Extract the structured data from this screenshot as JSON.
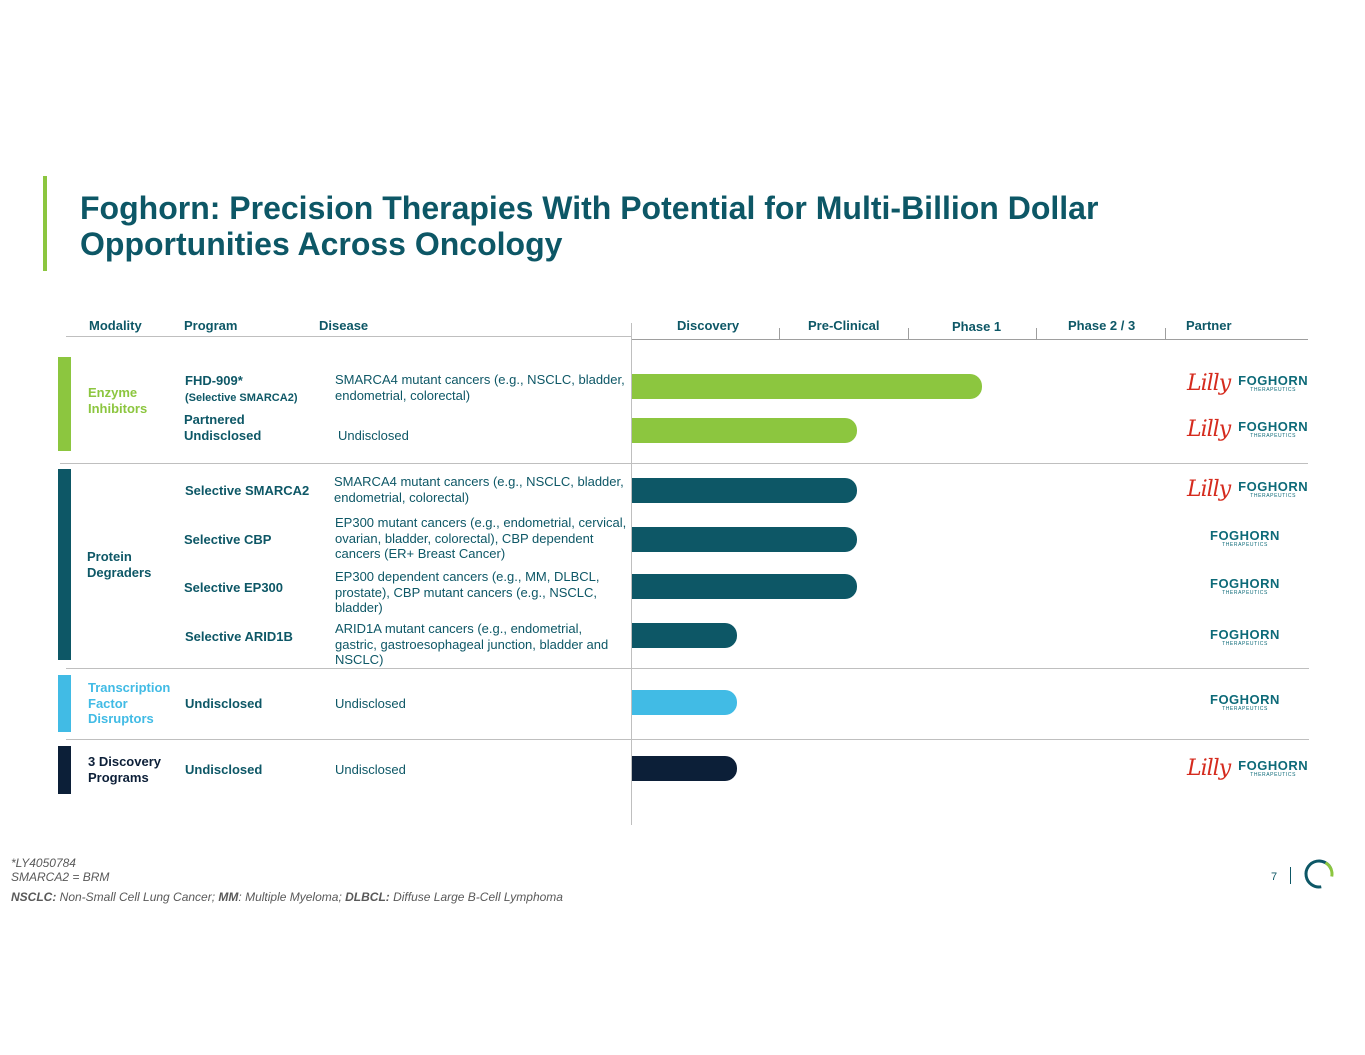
{
  "title": "Foghorn: Precision Therapies With Potential for Multi-Billion Dollar Opportunities Across Oncology",
  "columns": {
    "modality": "Modality",
    "program": "Program",
    "disease": "Disease",
    "discovery": "Discovery",
    "preclinical": "Pre-Clinical",
    "phase1": "Phase 1",
    "phase23": "Phase 2 / 3",
    "partner": "Partner"
  },
  "colors": {
    "title": "#0d5766",
    "enzyme": "#8cc63f",
    "degrader": "#0d5766",
    "transcription": "#41bbe5",
    "discovery_programs": "#0c1f38",
    "lilly": "#d52b1e"
  },
  "modalities": [
    {
      "label": "Enzyme Inhibitors",
      "color": "#8cc63f"
    },
    {
      "label": "Protein Degraders",
      "color": "#0d5766"
    },
    {
      "label": "Transcription Factor Disruptors",
      "color": "#41bbe5"
    },
    {
      "label": "3 Discovery Programs",
      "color": "#0c1f38"
    }
  ],
  "programs": [
    {
      "name": "FHD-909*",
      "subname": "(Selective SMARCA2)",
      "disease": "SMARCA4 mutant cancers (e.g., NSCLC, bladder, endometrial, colorectal)",
      "stage_progress": 0.7,
      "color": "#8cc63f",
      "partner": "lilly-foghorn"
    },
    {
      "name": "Partnered Undisclosed",
      "subname": "",
      "disease": "Undisclosed",
      "stage_progress": 0.45,
      "color": "#8cc63f",
      "partner": "lilly-foghorn"
    },
    {
      "name": "Selective SMARCA2",
      "subname": "",
      "disease": "SMARCA4 mutant cancers (e.g., NSCLC, bladder, endometrial, colorectal)",
      "stage_progress": 0.45,
      "color": "#0d5766",
      "partner": "lilly-foghorn"
    },
    {
      "name": "Selective CBP",
      "subname": "",
      "disease": "EP300 mutant cancers (e.g., endometrial, cervical, ovarian, bladder, colorectal), CBP dependent cancers (ER+ Breast Cancer)",
      "stage_progress": 0.45,
      "color": "#0d5766",
      "partner": "foghorn"
    },
    {
      "name": "Selective EP300",
      "subname": "",
      "disease": "EP300 dependent cancers (e.g., MM, DLBCL, prostate), CBP mutant cancers (e.g., NSCLC, bladder)",
      "stage_progress": 0.45,
      "color": "#0d5766",
      "partner": "foghorn"
    },
    {
      "name": "Selective ARID1B",
      "subname": "",
      "disease": "ARID1A mutant cancers (e.g., endometrial, gastric, gastroesophageal junction, bladder and NSCLC)",
      "stage_progress": 0.21,
      "color": "#0d5766",
      "partner": "foghorn"
    },
    {
      "name": "Undisclosed",
      "subname": "",
      "disease": "Undisclosed",
      "stage_progress": 0.21,
      "color": "#41bbe5",
      "partner": "foghorn"
    },
    {
      "name": "Undisclosed",
      "subname": "",
      "disease": "Undisclosed",
      "stage_progress": 0.21,
      "color": "#0c1f38",
      "partner": "lilly-foghorn"
    }
  ],
  "logos": {
    "lilly": "Lilly",
    "foghorn": "FOGHORN",
    "foghorn_sub": "THERAPEUTICS"
  },
  "footnotes": {
    "line1": "*LY4050784",
    "line2": "SMARCA2 = BRM",
    "abbr1_term": "NSCLC:",
    "abbr1_def": " Non-Small Cell Lung Cancer; ",
    "abbr2_term": "MM",
    "abbr2_def": ": Multiple Myeloma; ",
    "abbr3_term": "DLBCL:",
    "abbr3_def": " Diffuse Large B-Cell Lymphoma"
  },
  "page_number": "7"
}
